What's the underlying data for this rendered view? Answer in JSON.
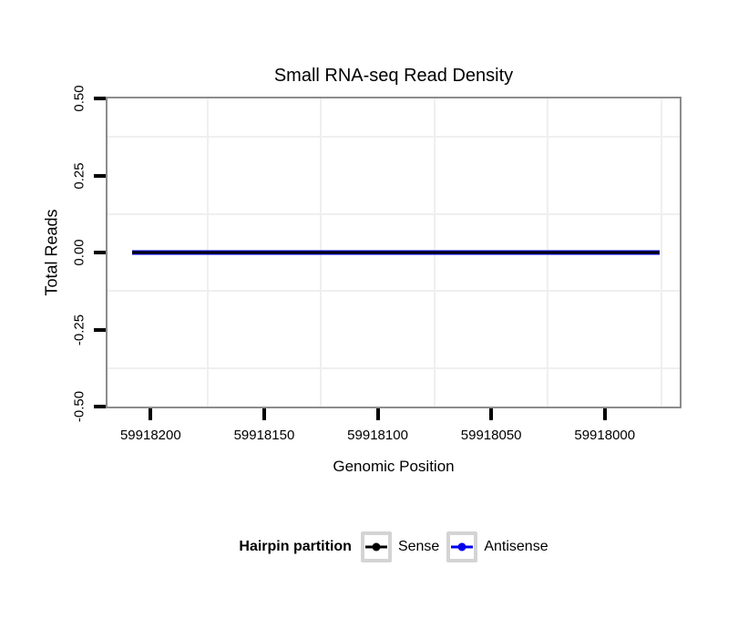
{
  "chart_data": {
    "type": "line",
    "title": "Small RNA-seq Read Density",
    "xlabel": "Genomic Position",
    "ylabel": "Total Reads",
    "grid": "minor-only",
    "x_axis": {
      "reversed": true,
      "left_value": 59918219,
      "right_value": 59917967,
      "ticks": [
        {
          "value": 59918200,
          "label": "59918200"
        },
        {
          "value": 59918150,
          "label": "59918150"
        },
        {
          "value": 59918100,
          "label": "59918100"
        },
        {
          "value": 59918050,
          "label": "59918050"
        },
        {
          "value": 59918000,
          "label": "59918000"
        }
      ],
      "minor_gridlines": [
        59918175,
        59918125,
        59918075,
        59918025,
        59917975
      ]
    },
    "y_axis": {
      "top_value": 0.5,
      "bottom_value": -0.5,
      "ticks": [
        {
          "value": 0.5,
          "label": "0.50"
        },
        {
          "value": 0.25,
          "label": "0.25"
        },
        {
          "value": 0,
          "label": "0.00"
        },
        {
          "value": -0.25,
          "label": "-0.25"
        },
        {
          "value": -0.5,
          "label": "-0.50"
        }
      ],
      "minor_gridlines": [
        0.375,
        0.125,
        -0.125,
        -0.375
      ]
    },
    "series": [
      {
        "name": "Sense",
        "color": "#000000",
        "x_start": 59918208,
        "x_end": 59917976,
        "y": 0
      },
      {
        "name": "Antisense",
        "color": "#0000EE",
        "x_start": 59918208,
        "x_end": 59917976,
        "y": 0
      }
    ],
    "legend": {
      "title": "Hairpin partition",
      "position": "bottom",
      "entries": [
        {
          "label": "Sense",
          "color": "#000000"
        },
        {
          "label": "Antisense",
          "color": "#0000EE"
        }
      ]
    },
    "colors": {
      "panel_border": "#8c8c8c",
      "minor_gridline": "#efefef",
      "legend_key_border": "#d4d4d4",
      "tick": "#000000"
    }
  }
}
